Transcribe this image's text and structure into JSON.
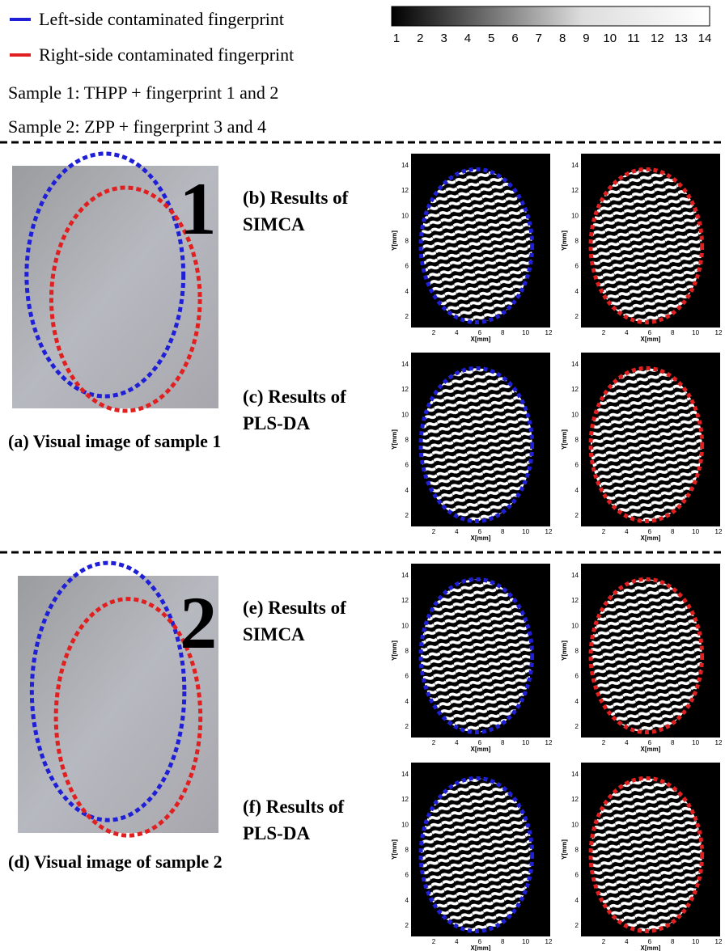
{
  "legend": [
    {
      "label": "Left-side contaminated fingerprint",
      "color": "#1f1fd6"
    },
    {
      "label": "Right-side contaminated fingerprint",
      "color": "#e02020"
    }
  ],
  "samples": [
    "Sample 1: THPP + fingerprint 1 and 2",
    "Sample 2: ZPP + fingerprint 3 and 4"
  ],
  "colorbar": {
    "ticks": [
      1,
      2,
      3,
      4,
      5,
      6,
      7,
      8,
      9,
      10,
      11,
      12,
      13,
      14
    ]
  },
  "sections": [
    {
      "number": "1",
      "caption": "(a) Visual image of sample 1",
      "results": [
        [
          "(b) Results of",
          "SIMCA"
        ],
        [
          "(c) Results of",
          "PLS-DA"
        ]
      ]
    },
    {
      "number": "2",
      "caption": "(d) Visual image of sample 2",
      "results": [
        [
          "(e) Results of",
          "SIMCA"
        ],
        [
          "(f) Results of",
          "PLS-DA"
        ]
      ]
    }
  ],
  "plot_axes": {
    "x_label": "X[mm]",
    "y_label": "Y[mm]",
    "xticks": [
      2,
      4,
      6,
      8,
      10,
      12
    ],
    "yticks": [
      2,
      4,
      6,
      8,
      10,
      12,
      14
    ]
  }
}
